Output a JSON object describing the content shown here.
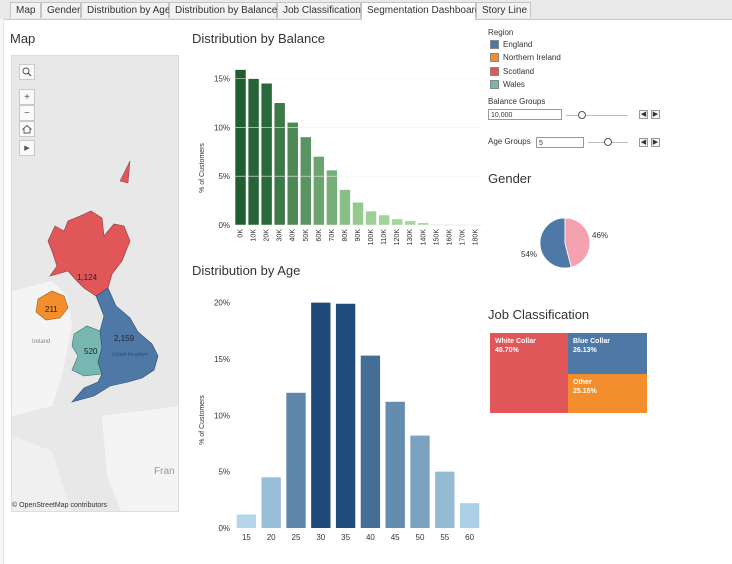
{
  "tabs": [
    "Map",
    "Gender",
    "Distribution by Age",
    "Distribution by Balance",
    "Job Classification",
    "Segmentation Dashboard",
    "Story Line"
  ],
  "active_tab": "Segmentation Dashboard",
  "map": {
    "title": "Map",
    "labels": {
      "scotland": "1,124",
      "ni": "211",
      "wales": "520",
      "england": "2,159"
    },
    "place_labels": {
      "ireland": "Ireland",
      "uk": "United Kingdom",
      "france": "Fran"
    },
    "copyright": "© OpenStreetMap contributors",
    "zoom_in": "+",
    "zoom_out": "−",
    "play": "▶"
  },
  "legend": {
    "title": "Region",
    "items": [
      {
        "label": "England",
        "color": "#4e79a7"
      },
      {
        "label": "Northern Ireland",
        "color": "#f28e2b"
      },
      {
        "label": "Scotland",
        "color": "#e15759"
      },
      {
        "label": "Wales",
        "color": "#76b7b2"
      }
    ]
  },
  "controls": {
    "balance_label": "Balance Groups",
    "balance_value": "10,000",
    "age_label": "Age Groups",
    "age_value": "5",
    "prev": "◀",
    "next": "▶"
  },
  "gender": {
    "title": "Gender",
    "label_left": "54%",
    "label_right": "46%"
  },
  "job": {
    "title": "Job Classification",
    "cells": [
      {
        "label": "White Collar",
        "value": "48.70%",
        "color": "#e15759"
      },
      {
        "label": "Blue Collar",
        "value": "26.13%",
        "color": "#4e79a7"
      },
      {
        "label": "Other",
        "value": "25.16%",
        "color": "#f28e2b"
      }
    ]
  },
  "chart_data": [
    {
      "type": "bar",
      "title": "Distribution by Balance",
      "ylabel": "% of Customers",
      "xlabel": "",
      "categories": [
        "0K",
        "10K",
        "20K",
        "30K",
        "40K",
        "50K",
        "60K",
        "70K",
        "80K",
        "90K",
        "100K",
        "110K",
        "120K",
        "130K",
        "140K",
        "150K",
        "160K",
        "170K",
        "180K"
      ],
      "values": [
        15.9,
        15.0,
        14.5,
        12.5,
        10.5,
        9.0,
        7.0,
        5.6,
        3.6,
        2.3,
        1.4,
        1.0,
        0.6,
        0.4,
        0.2,
        0.05,
        0.03,
        0.02,
        0.01
      ],
      "yticks": [
        "0%",
        "5%",
        "10%",
        "15%"
      ],
      "ylim": [
        0,
        16.5
      ],
      "grid": false,
      "bar_color_range": [
        "#1e5e2f",
        "#a8dba0"
      ]
    },
    {
      "type": "bar",
      "title": "Distribution by Age",
      "ylabel": "% of Customers",
      "xlabel": "",
      "categories": [
        "15",
        "20",
        "25",
        "30",
        "35",
        "40",
        "45",
        "50",
        "55",
        "60"
      ],
      "values": [
        1.2,
        4.5,
        12.0,
        20.0,
        19.9,
        15.3,
        11.2,
        8.2,
        5.0,
        2.2
      ],
      "yticks": [
        "0%",
        "5%",
        "10%",
        "15%",
        "20%"
      ],
      "ylim": [
        0,
        20.5
      ],
      "grid": false,
      "bar_color_range": [
        "#bcdff2",
        "#1f4b7a"
      ]
    },
    {
      "type": "pie",
      "title": "Gender",
      "slices": [
        {
          "value": 54,
          "color": "#4e79a7"
        },
        {
          "value": 46,
          "color": "#f4a2b0"
        }
      ]
    }
  ]
}
